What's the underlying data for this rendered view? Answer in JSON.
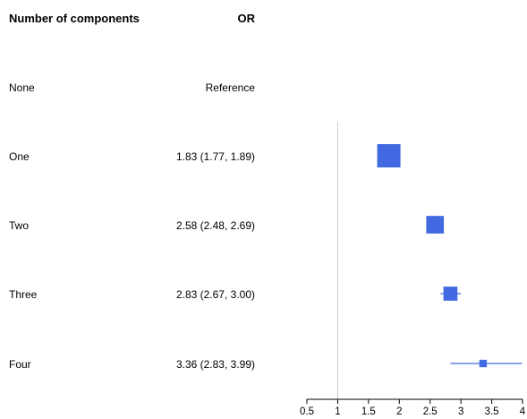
{
  "headers": {
    "left": "Number of components",
    "right": "OR"
  },
  "chart_data": {
    "type": "forest",
    "title": "",
    "xlabel": "",
    "ylabel": "",
    "reference_line": 1,
    "xlim": [
      0.5,
      4
    ],
    "ticks": [
      0.5,
      1,
      1.5,
      2,
      2.5,
      3,
      3.5,
      4
    ],
    "tick_labels": [
      "0.5",
      "1",
      "1.5",
      "2",
      "2.5",
      "3",
      "3.5",
      "4"
    ],
    "marker_color": "#4169E1",
    "rows": [
      {
        "label": "None",
        "or_text": "Reference"
      },
      {
        "label": "One",
        "or_text": "1.83 (1.77, 1.89)",
        "estimate": 1.83,
        "lower": 1.77,
        "upper": 1.89
      },
      {
        "label": "Two",
        "or_text": "2.58 (2.48, 2.69)",
        "estimate": 2.58,
        "lower": 2.48,
        "upper": 2.69
      },
      {
        "label": "Three",
        "or_text": "2.83 (2.67, 3.00)",
        "estimate": 2.83,
        "lower": 2.67,
        "upper": 3.0
      },
      {
        "label": "Four",
        "or_text": "3.36 (2.83, 3.99)",
        "estimate": 3.36,
        "lower": 2.83,
        "upper": 3.99
      }
    ]
  }
}
